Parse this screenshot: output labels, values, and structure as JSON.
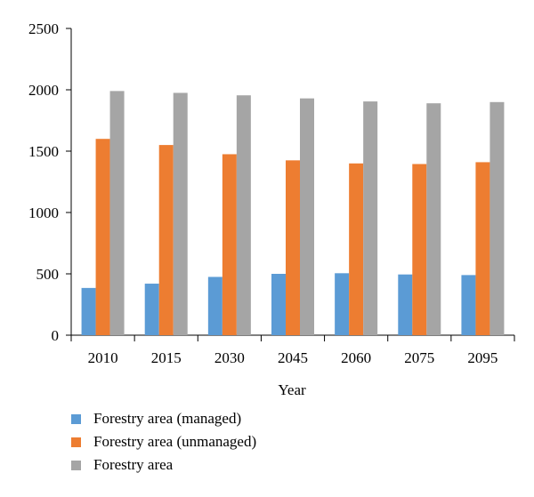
{
  "chart_data": {
    "type": "bar",
    "categories": [
      "2010",
      "2015",
      "2030",
      "2045",
      "2060",
      "2075",
      "2095"
    ],
    "series": [
      {
        "name": "Forestry area (managed)",
        "color": "#5b9bd5",
        "values": [
          385,
          420,
          475,
          500,
          505,
          495,
          490
        ]
      },
      {
        "name": "Forestry area (unmanaged)",
        "color": "#ed7d31",
        "values": [
          1600,
          1550,
          1475,
          1425,
          1400,
          1395,
          1410
        ]
      },
      {
        "name": "Forestry area",
        "color": "#a5a5a5",
        "values": [
          1990,
          1975,
          1955,
          1930,
          1905,
          1890,
          1900
        ]
      }
    ],
    "xlabel": "Year",
    "ylabel": "",
    "ylim": [
      0,
      2500
    ],
    "yticks": [
      "0",
      "500",
      "1000",
      "1500",
      "2000",
      "2500"
    ],
    "legend_position": "bottom-left",
    "grid": false
  }
}
